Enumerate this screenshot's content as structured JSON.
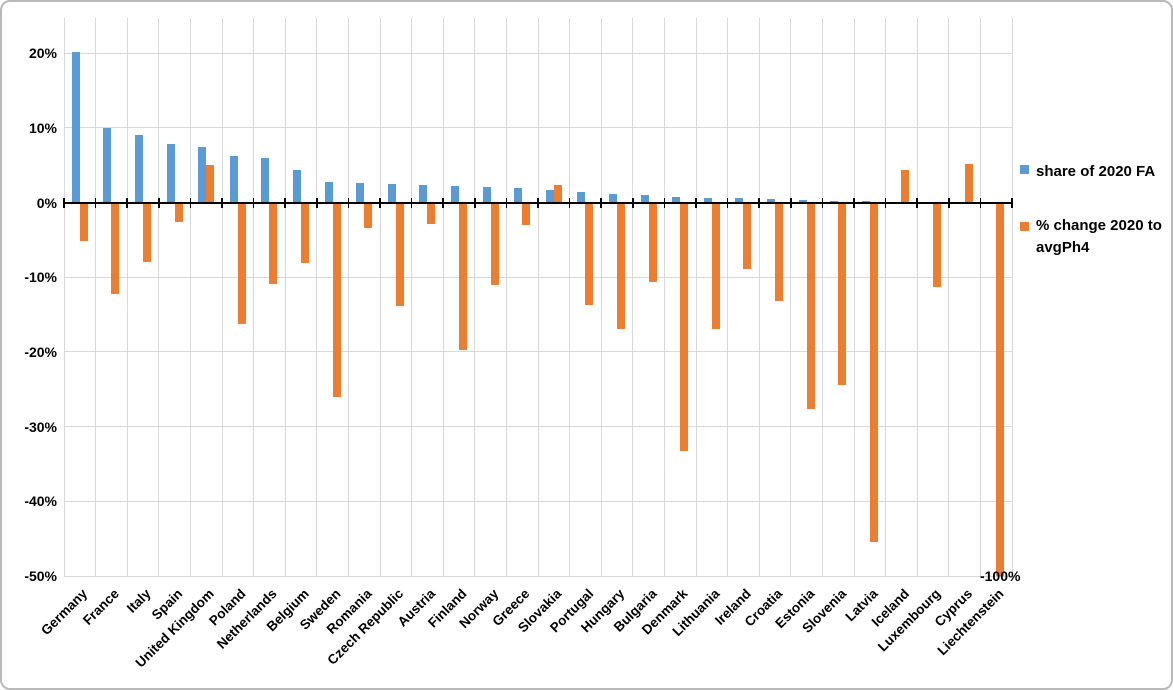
{
  "chart_data": {
    "type": "bar",
    "title": "",
    "categories": [
      "Germany",
      "France",
      "Italy",
      "Spain",
      "United Kingdom",
      "Poland",
      "Netherlands",
      "Belgium",
      "Sweden",
      "Romania",
      "Czech Republic",
      "Austria",
      "Finland",
      "Norway",
      "Greece",
      "Slovakia",
      "Portugal",
      "Hungary",
      "Bulgaria",
      "Denmark",
      "Lithuania",
      "Ireland",
      "Croatia",
      "Estonia",
      "Slovenia",
      "Latvia",
      "Iceland",
      "Luxembourg",
      "Cyprus",
      "Liechtenstein"
    ],
    "series": [
      {
        "name": "share of 2020 FA",
        "color": "#5B9BD5",
        "values": [
          20.1,
          10.0,
          9.1,
          7.8,
          7.4,
          6.2,
          6.0,
          4.4,
          2.8,
          2.6,
          2.5,
          2.4,
          2.2,
          2.1,
          1.9,
          1.7,
          1.4,
          1.2,
          1.0,
          0.8,
          0.6,
          0.6,
          0.5,
          0.3,
          0.2,
          0.15,
          0,
          0,
          0,
          0
        ]
      },
      {
        "name": " % change 2020 to avgPh4",
        "color": "#ED7D31",
        "values": [
          -5.2,
          -12.2,
          -7.9,
          -2.6,
          5.0,
          -16.2,
          -10.9,
          -8.1,
          -26.0,
          -3.4,
          -13.8,
          -2.9,
          -19.8,
          -11.1,
          -3.0,
          2.4,
          -13.7,
          -16.9,
          -10.7,
          -33.2,
          -17.0,
          -8.9,
          -13.2,
          -27.6,
          -24.4,
          -45.4,
          4.4,
          -11.3,
          5.2,
          -100
        ]
      }
    ],
    "ylim": [
      -50,
      24.7
    ],
    "yticks": [
      20,
      10,
      0,
      -10,
      -20,
      -30,
      -40,
      -50
    ],
    "ytick_labels": [
      "20%",
      "10%",
      "0%",
      "-10%",
      "-20%",
      "-30%",
      "-40%",
      "-50%"
    ],
    "grid": true,
    "legend_position": "right",
    "annotation": {
      "text": "-100%",
      "category_index": 29,
      "series_index": 1
    },
    "colors": {
      "share": "#5B9BD5",
      "change": "#ED7D31",
      "gridline": "#d9d9d9",
      "axis": "#000000",
      "text": "#000000"
    }
  }
}
